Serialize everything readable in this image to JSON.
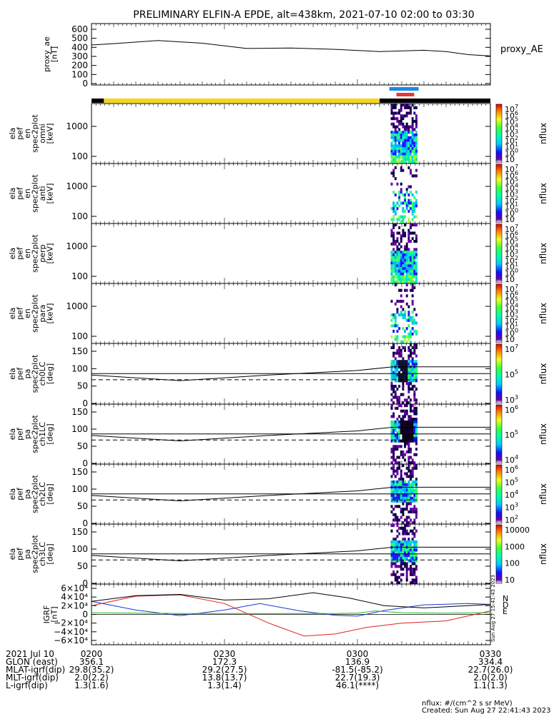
{
  "title": "PRELIMINARY ELFIN-A EPDE, alt=438km, 2021-07-10 02:00 to 03:30",
  "colors": {
    "science_bar": "#f5d617",
    "dark_bar": "#000000",
    "blue_mark": "#1e88e5",
    "red_mark": "#e53935",
    "bx": "#1a35d0",
    "by": "#e02020",
    "bz": "#20c020",
    "btotal": "#000000"
  },
  "timeline": {
    "segments": [
      {
        "kind": "dark",
        "t0": 0,
        "t1": 2.8
      },
      {
        "kind": "science",
        "t0": 2.8,
        "t1": 65.0
      },
      {
        "kind": "dark",
        "t0": 65.0,
        "t1": 90
      }
    ],
    "blue_mark": [
      67.2,
      73.8
    ],
    "red_mark": [
      68.8,
      72.8
    ]
  },
  "panels": [
    {
      "id": "proxy_ae",
      "ylabel": [
        "proxy_ae",
        "[nT]"
      ],
      "right_label": "proxy_AE",
      "ticks": [
        "600",
        "500",
        "400",
        "300",
        "200",
        "100",
        "0"
      ],
      "type": "line"
    },
    {
      "id": "en_omni",
      "ylabel": [
        "ela",
        "pef",
        "en",
        "spec2plot",
        "omni",
        "[keV]"
      ],
      "ticks": [
        "1000",
        "100"
      ],
      "type": "spectrogram",
      "colorbar": {
        "label": "nflux",
        "ticks": [
          "10",
          "10",
          "10",
          "10",
          "10",
          "10",
          "10",
          "10",
          "10"
        ],
        "exps": [
          "7",
          "6",
          "5",
          "4",
          "3",
          "2",
          "1",
          "0",
          ""
        ]
      }
    },
    {
      "id": "en_anti",
      "ylabel": [
        "ela",
        "pef",
        "en",
        "spec2plot",
        "anti",
        "[keV]"
      ],
      "ticks": [
        "1000",
        "100"
      ],
      "type": "spectrogram",
      "colorbar": {
        "label": "nflux",
        "ticks": [
          "10",
          "10",
          "10",
          "10",
          "10",
          "10",
          "10",
          "10",
          "10"
        ],
        "exps": [
          "7",
          "6",
          "5",
          "4",
          "3",
          "2",
          "1",
          "0",
          ""
        ]
      }
    },
    {
      "id": "en_perp",
      "ylabel": [
        "ela",
        "pef",
        "en",
        "spec2plot",
        "perp",
        "[keV]"
      ],
      "ticks": [
        "1000",
        "100"
      ],
      "type": "spectrogram",
      "colorbar": {
        "label": "nflux",
        "ticks": [
          "10",
          "10",
          "10",
          "10",
          "10",
          "10",
          "10",
          "10",
          "10"
        ],
        "exps": [
          "7",
          "6",
          "5",
          "4",
          "3",
          "2",
          "1",
          "0",
          ""
        ]
      }
    },
    {
      "id": "en_para",
      "ylabel": [
        "ela",
        "pef",
        "en",
        "spec2plot",
        "para",
        "[keV]"
      ],
      "ticks": [
        "1000",
        "100"
      ],
      "type": "spectrogram",
      "colorbar": {
        "label": "nflux",
        "ticks": [
          "10",
          "10",
          "10",
          "10",
          "10",
          "10",
          "10",
          "10",
          "10"
        ],
        "exps": [
          "7",
          "6",
          "5",
          "4",
          "3",
          "2",
          "1",
          "0",
          ""
        ]
      }
    },
    {
      "id": "pa_ch0",
      "ylabel": [
        "ela",
        "pef",
        "pa",
        "spec2plot",
        "ch0LC",
        "[deg]"
      ],
      "ticks": [
        "150",
        "100",
        "50",
        "0"
      ],
      "type": "pitch",
      "colorbar": {
        "label": "nflux",
        "ticks": [
          "10",
          "10",
          "10"
        ],
        "exps": [
          "7",
          "5",
          "3"
        ]
      }
    },
    {
      "id": "pa_ch1",
      "ylabel": [
        "ela",
        "pef",
        "pa",
        "spec2plot",
        "ch1LC",
        "[deg]"
      ],
      "ticks": [
        "150",
        "100",
        "50",
        "0"
      ],
      "type": "pitch",
      "colorbar": {
        "label": "nflux",
        "ticks": [
          "10",
          "10",
          "10"
        ],
        "exps": [
          "6",
          "5",
          "4"
        ]
      }
    },
    {
      "id": "pa_ch2",
      "ylabel": [
        "ela",
        "pef",
        "pa",
        "spec2plot",
        "ch2LC",
        "[deg]"
      ],
      "ticks": [
        "150",
        "100",
        "50",
        "0"
      ],
      "type": "pitch",
      "colorbar": {
        "label": "nflux",
        "ticks": [
          "10",
          "10",
          "10",
          "10",
          "10"
        ],
        "exps": [
          "6",
          "5",
          "4",
          "3",
          "2"
        ]
      }
    },
    {
      "id": "pa_ch3",
      "ylabel": [
        "ela",
        "pef",
        "pa",
        "spec2plot",
        "ch3LC",
        "[deg]"
      ],
      "ticks": [
        "150",
        "100",
        "50",
        "0"
      ],
      "type": "pitch",
      "colorbar": {
        "label": "nflux",
        "ticks": [
          "10000",
          "1000",
          "100",
          "10"
        ],
        "exps": [
          "",
          "",
          "",
          ""
        ]
      }
    },
    {
      "id": "igrf",
      "ylabel": [
        "IGRF",
        "[nT]"
      ],
      "ticks": [
        "6×10⁴",
        "4×10⁴",
        "2×10⁴",
        "0",
        "−2×10⁴",
        "−4×10⁴",
        "−6×10⁴"
      ],
      "type": "lines",
      "legend": [
        "N",
        "D",
        "E"
      ],
      "side_note": "Sun Aug 27 15:41:43 2023"
    }
  ],
  "chart_data": {
    "type": "line",
    "x_range_minutes": [
      0,
      90
    ],
    "x_ticks": [
      "0200",
      "0230",
      "0300",
      "0330"
    ],
    "proxy_ae": {
      "x": [
        0,
        5,
        15,
        25,
        35,
        45,
        55,
        65,
        75,
        80,
        85,
        90
      ],
      "y": [
        430,
        445,
        480,
        450,
        390,
        395,
        380,
        355,
        370,
        355,
        320,
        305
      ],
      "ylim": [
        0,
        600
      ]
    },
    "pitch_angle_lines": {
      "x": [
        0,
        20,
        40,
        60,
        68,
        75,
        90
      ],
      "lower_loss_cone": [
        85,
        67,
        85,
        100,
        112,
        112,
        112
      ],
      "reference_90": 90,
      "dashed_level": 70,
      "ylim": [
        0,
        180
      ]
    },
    "spectrogram_window_minutes": [
      67.5,
      73.5
    ],
    "igrf": {
      "ylim": [
        -65000,
        65000
      ],
      "series": [
        {
          "name": "N",
          "x": [
            0,
            10,
            20,
            30,
            38,
            47,
            55,
            60,
            66,
            75,
            85,
            90
          ],
          "y": [
            30000,
            10000,
            -3000,
            10000,
            25000,
            8000,
            -2000,
            -4000,
            9000,
            22000,
            25000,
            23000
          ]
        },
        {
          "name": "D",
          "x": [
            0,
            10,
            20,
            30,
            40,
            48,
            55,
            62,
            70,
            80,
            90
          ],
          "y": [
            20000,
            42000,
            45000,
            25000,
            -20000,
            -50000,
            -45000,
            -30000,
            -20000,
            -15000,
            8000
          ]
        },
        {
          "name": "E",
          "x": [
            0,
            20,
            40,
            55,
            60,
            64,
            70,
            80,
            90
          ],
          "y": [
            4000,
            2000,
            2000,
            2000,
            3000,
            8000,
            4000,
            3000,
            4000
          ]
        },
        {
          "name": "total",
          "x": [
            0,
            10,
            20,
            30,
            40,
            50,
            58,
            66,
            75,
            85,
            90
          ],
          "y": [
            30000,
            43000,
            46000,
            33000,
            36000,
            50000,
            38000,
            20000,
            15000,
            20000,
            23000
          ]
        }
      ]
    }
  },
  "footer": {
    "rows": [
      {
        "label": "2021 Jul 10",
        "values": [
          "0200",
          "0230",
          "0300",
          "0330"
        ]
      },
      {
        "label": "GLON (east)",
        "values": [
          "356.1",
          "172.3",
          "136.9",
          "334.4"
        ]
      },
      {
        "label": "MLAT-igrf(dip)",
        "values": [
          "29.8(35.2)",
          "29.2(27.5)",
          "-81.5(-85.2)",
          "22.7(26.0)"
        ]
      },
      {
        "label": "MLT-igrf(dip)",
        "values": [
          "2.0(2.2)",
          "13.8(13.7)",
          "22.7(19.3)",
          "2.0(2.0)"
        ]
      },
      {
        "label": "L-igrf(dip)",
        "values": [
          "1.3(1.6)",
          "1.3(1.4)",
          "46.1(****)",
          "1.1(1.3)"
        ]
      }
    ],
    "units_note": "nflux: #/(cm^2 s sr MeV)",
    "created": "Created: Sun Aug 27 22:41:43 2023"
  }
}
